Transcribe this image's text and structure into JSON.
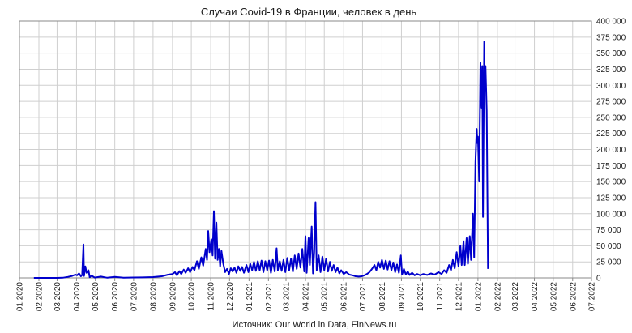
{
  "chart_data": {
    "type": "line",
    "title": "Случаи Covid-19 в Франции, человек в день",
    "source": "Источник: Our World in Data, FinNews.ru",
    "y_axis_side": "right",
    "ylim": [
      0,
      400000
    ],
    "y_ticks": [
      0,
      25000,
      50000,
      75000,
      100000,
      125000,
      150000,
      175000,
      200000,
      225000,
      250000,
      275000,
      300000,
      325000,
      350000,
      375000,
      400000
    ],
    "y_tick_labels": [
      "0",
      "25 000",
      "50 000",
      "75 000",
      "100 000",
      "125 000",
      "150 000",
      "175 000",
      "200 000",
      "225 000",
      "250 000",
      "275 000",
      "300 000",
      "325 000",
      "350 000",
      "375 000",
      "400 000"
    ],
    "x_ticks": [
      "2020-01-01",
      "2020-02-01",
      "2020-03-01",
      "2020-04-01",
      "2020-05-01",
      "2020-06-01",
      "2020-07-01",
      "2020-08-01",
      "2020-09-01",
      "2020-10-01",
      "2020-11-01",
      "2020-12-01",
      "2021-01-01",
      "2021-02-01",
      "2021-03-01",
      "2021-04-01",
      "2021-05-01",
      "2021-06-01",
      "2021-07-01",
      "2021-08-01",
      "2021-09-01",
      "2021-10-01",
      "2021-11-01",
      "2021-12-01",
      "2022-01-01",
      "2022-02-01",
      "2022-03-01",
      "2022-04-01",
      "2022-05-01",
      "2022-06-01",
      "2022-07-01"
    ],
    "x_tick_labels": [
      "01.2020",
      "02.2020",
      "03.2020",
      "04.2020",
      "05.2020",
      "06.2020",
      "07.2020",
      "08.2020",
      "09.2020",
      "10.2020",
      "11.2020",
      "12.2020",
      "01.2021",
      "02.2021",
      "03.2021",
      "04.2021",
      "05.2021",
      "06.2021",
      "07.2021",
      "08.2021",
      "09.2021",
      "10.2021",
      "11.2021",
      "12.2021",
      "01.2022",
      "02.2022",
      "03.2022",
      "04.2022",
      "05.2022",
      "06.2022",
      "07.2022"
    ],
    "xlim": [
      "2020-01-01",
      "2022-07-01"
    ],
    "grid": true,
    "legend": "none",
    "series": [
      {
        "color": "#0000cc",
        "points": [
          [
            "2020-01-24",
            0
          ],
          [
            "2020-03-01",
            0
          ],
          [
            "2020-03-10",
            300
          ],
          [
            "2020-03-18",
            1500
          ],
          [
            "2020-03-25",
            3000
          ],
          [
            "2020-03-30",
            5000
          ],
          [
            "2020-04-02",
            4000
          ],
          [
            "2020-04-05",
            7000
          ],
          [
            "2020-04-08",
            2500
          ],
          [
            "2020-04-10",
            4500
          ],
          [
            "2020-04-12",
            52000
          ],
          [
            "2020-04-13",
            3000
          ],
          [
            "2020-04-15",
            18000
          ],
          [
            "2020-04-17",
            8000
          ],
          [
            "2020-04-20",
            12000
          ],
          [
            "2020-04-22",
            1000
          ],
          [
            "2020-04-25",
            3500
          ],
          [
            "2020-04-30",
            500
          ],
          [
            "2020-05-10",
            2000
          ],
          [
            "2020-05-20",
            300
          ],
          [
            "2020-06-01",
            1500
          ],
          [
            "2020-06-15",
            300
          ],
          [
            "2020-07-01",
            600
          ],
          [
            "2020-07-15",
            700
          ],
          [
            "2020-08-01",
            1200
          ],
          [
            "2020-08-15",
            2500
          ],
          [
            "2020-08-25",
            5000
          ],
          [
            "2020-09-01",
            6000
          ],
          [
            "2020-09-05",
            9000
          ],
          [
            "2020-09-08",
            4000
          ],
          [
            "2020-09-12",
            10500
          ],
          [
            "2020-09-15",
            6000
          ],
          [
            "2020-09-19",
            13000
          ],
          [
            "2020-09-22",
            8000
          ],
          [
            "2020-09-26",
            15000
          ],
          [
            "2020-09-29",
            9000
          ],
          [
            "2020-10-03",
            17000
          ],
          [
            "2020-10-06",
            12000
          ],
          [
            "2020-10-10",
            26000
          ],
          [
            "2020-10-13",
            14000
          ],
          [
            "2020-10-17",
            32000
          ],
          [
            "2020-10-20",
            19000
          ],
          [
            "2020-10-24",
            45000
          ],
          [
            "2020-10-26",
            28000
          ],
          [
            "2020-10-28",
            73000
          ],
          [
            "2020-10-30",
            40000
          ],
          [
            "2020-11-02",
            60000
          ],
          [
            "2020-11-04",
            35000
          ],
          [
            "2020-11-06",
            104000
          ],
          [
            "2020-11-08",
            30000
          ],
          [
            "2020-11-10",
            86000
          ],
          [
            "2020-11-12",
            28000
          ],
          [
            "2020-11-14",
            45000
          ],
          [
            "2020-11-16",
            18000
          ],
          [
            "2020-11-18",
            42000
          ],
          [
            "2020-11-21",
            22000
          ],
          [
            "2020-11-24",
            9000
          ],
          [
            "2020-11-27",
            14000
          ],
          [
            "2020-11-30",
            6000
          ],
          [
            "2020-12-03",
            15000
          ],
          [
            "2020-12-06",
            10000
          ],
          [
            "2020-12-09",
            16000
          ],
          [
            "2020-12-12",
            8000
          ],
          [
            "2020-12-15",
            18000
          ],
          [
            "2020-12-18",
            11000
          ],
          [
            "2020-12-21",
            17000
          ],
          [
            "2020-12-24",
            8000
          ],
          [
            "2020-12-28",
            20000
          ],
          [
            "2020-12-31",
            9000
          ],
          [
            "2021-01-03",
            22000
          ],
          [
            "2021-01-06",
            12000
          ],
          [
            "2021-01-09",
            25000
          ],
          [
            "2021-01-12",
            11000
          ],
          [
            "2021-01-15",
            26000
          ],
          [
            "2021-01-18",
            12000
          ],
          [
            "2021-01-21",
            27000
          ],
          [
            "2021-01-24",
            9000
          ],
          [
            "2021-01-27",
            26000
          ],
          [
            "2021-01-30",
            12000
          ],
          [
            "2021-02-02",
            27000
          ],
          [
            "2021-02-05",
            8000
          ],
          [
            "2021-02-08",
            28000
          ],
          [
            "2021-02-11",
            10000
          ],
          [
            "2021-02-14",
            46000
          ],
          [
            "2021-02-16",
            12000
          ],
          [
            "2021-02-19",
            26000
          ],
          [
            "2021-02-22",
            11000
          ],
          [
            "2021-02-25",
            28000
          ],
          [
            "2021-02-28",
            9000
          ],
          [
            "2021-03-03",
            31000
          ],
          [
            "2021-03-06",
            12000
          ],
          [
            "2021-03-09",
            30000
          ],
          [
            "2021-03-12",
            10000
          ],
          [
            "2021-03-15",
            35000
          ],
          [
            "2021-03-18",
            14000
          ],
          [
            "2021-03-21",
            38000
          ],
          [
            "2021-03-24",
            16000
          ],
          [
            "2021-03-27",
            45000
          ],
          [
            "2021-03-30",
            10000
          ],
          [
            "2021-04-01",
            65000
          ],
          [
            "2021-04-03",
            8000
          ],
          [
            "2021-04-06",
            62000
          ],
          [
            "2021-04-08",
            20000
          ],
          [
            "2021-04-11",
            80000
          ],
          [
            "2021-04-13",
            7000
          ],
          [
            "2021-04-15",
            40000
          ],
          [
            "2021-04-17",
            118000
          ],
          [
            "2021-04-19",
            12000
          ],
          [
            "2021-04-22",
            35000
          ],
          [
            "2021-04-25",
            9000
          ],
          [
            "2021-04-28",
            33000
          ],
          [
            "2021-05-01",
            12000
          ],
          [
            "2021-05-04",
            30000
          ],
          [
            "2021-05-07",
            10000
          ],
          [
            "2021-05-10",
            25000
          ],
          [
            "2021-05-13",
            11000
          ],
          [
            "2021-05-16",
            20000
          ],
          [
            "2021-05-19",
            9000
          ],
          [
            "2021-05-22",
            16000
          ],
          [
            "2021-05-25",
            7000
          ],
          [
            "2021-05-28",
            12000
          ],
          [
            "2021-06-01",
            6000
          ],
          [
            "2021-06-05",
            9000
          ],
          [
            "2021-06-10",
            5000
          ],
          [
            "2021-06-15",
            4000
          ],
          [
            "2021-06-20",
            2500
          ],
          [
            "2021-06-25",
            2000
          ],
          [
            "2021-06-30",
            2500
          ],
          [
            "2021-07-04",
            4000
          ],
          [
            "2021-07-08",
            6000
          ],
          [
            "2021-07-12",
            9000
          ],
          [
            "2021-07-16",
            14000
          ],
          [
            "2021-07-20",
            20000
          ],
          [
            "2021-07-23",
            12000
          ],
          [
            "2021-07-26",
            25000
          ],
          [
            "2021-07-29",
            16000
          ],
          [
            "2021-08-01",
            28000
          ],
          [
            "2021-08-04",
            14000
          ],
          [
            "2021-08-07",
            27000
          ],
          [
            "2021-08-10",
            13000
          ],
          [
            "2021-08-13",
            26000
          ],
          [
            "2021-08-16",
            12000
          ],
          [
            "2021-08-19",
            24000
          ],
          [
            "2021-08-22",
            9000
          ],
          [
            "2021-08-25",
            21000
          ],
          [
            "2021-08-28",
            8000
          ],
          [
            "2021-08-31",
            35000
          ],
          [
            "2021-09-02",
            5000
          ],
          [
            "2021-09-05",
            14000
          ],
          [
            "2021-09-08",
            5000
          ],
          [
            "2021-09-11",
            10000
          ],
          [
            "2021-09-14",
            4500
          ],
          [
            "2021-09-18",
            8000
          ],
          [
            "2021-09-22",
            4000
          ],
          [
            "2021-09-26",
            6000
          ],
          [
            "2021-10-01",
            4000
          ],
          [
            "2021-10-06",
            6000
          ],
          [
            "2021-10-12",
            4500
          ],
          [
            "2021-10-18",
            7000
          ],
          [
            "2021-10-24",
            5000
          ],
          [
            "2021-10-30",
            9000
          ],
          [
            "2021-11-04",
            6000
          ],
          [
            "2021-11-08",
            12000
          ],
          [
            "2021-11-12",
            8000
          ],
          [
            "2021-11-16",
            20000
          ],
          [
            "2021-11-19",
            12000
          ],
          [
            "2021-11-22",
            28000
          ],
          [
            "2021-11-25",
            15000
          ],
          [
            "2021-11-28",
            40000
          ],
          [
            "2021-12-01",
            18000
          ],
          [
            "2021-12-04",
            50000
          ],
          [
            "2021-12-06",
            20000
          ],
          [
            "2021-12-09",
            57000
          ],
          [
            "2021-12-11",
            20000
          ],
          [
            "2021-12-14",
            62000
          ],
          [
            "2021-12-16",
            22000
          ],
          [
            "2021-12-19",
            65000
          ],
          [
            "2021-12-21",
            28000
          ],
          [
            "2021-12-24",
            100000
          ],
          [
            "2021-12-26",
            32000
          ],
          [
            "2021-12-28",
            180000
          ],
          [
            "2021-12-29",
            208000
          ],
          [
            "2021-12-30",
            232000
          ],
          [
            "2021-12-31",
            210000
          ],
          [
            "2022-01-01",
            220000
          ],
          [
            "2022-01-03",
            150000
          ],
          [
            "2022-01-05",
            335000
          ],
          [
            "2022-01-07",
            265000
          ],
          [
            "2022-01-08",
            330000
          ],
          [
            "2022-01-09",
            95000
          ],
          [
            "2022-01-11",
            368000
          ],
          [
            "2022-01-12",
            295000
          ],
          [
            "2022-01-13",
            330000
          ],
          [
            "2022-01-15",
            260000
          ],
          [
            "2022-01-17",
            14000
          ]
        ]
      }
    ]
  }
}
